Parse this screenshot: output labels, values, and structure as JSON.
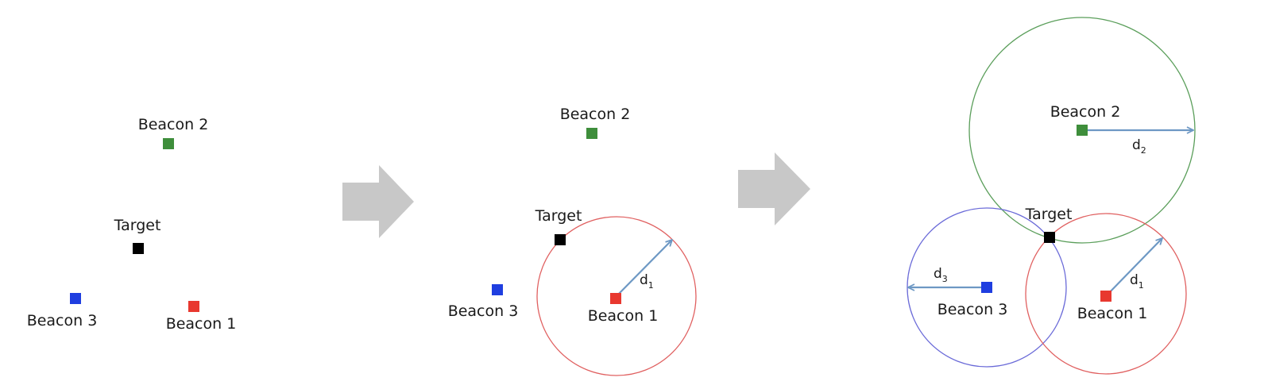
{
  "labels": {
    "beacon1": "Beacon 1",
    "beacon2": "Beacon 2",
    "beacon3": "Beacon 3",
    "target": "Target",
    "d1_base": "d",
    "d1_sub": "1",
    "d2_base": "d",
    "d2_sub": "2",
    "d3_base": "d",
    "d3_sub": "3"
  },
  "colors": {
    "beacon1": "#e8382f",
    "beacon2": "#3e8e3b",
    "beacon3": "#1f3ee0",
    "target": "#000000",
    "circle1": "#e06060",
    "circle2": "#5a9e5a",
    "circle3": "#6a6ad8",
    "arrow": "#6d98c4",
    "transition_arrow": "#c8c8c8"
  },
  "icons": {
    "transition": "right-arrow-icon"
  }
}
